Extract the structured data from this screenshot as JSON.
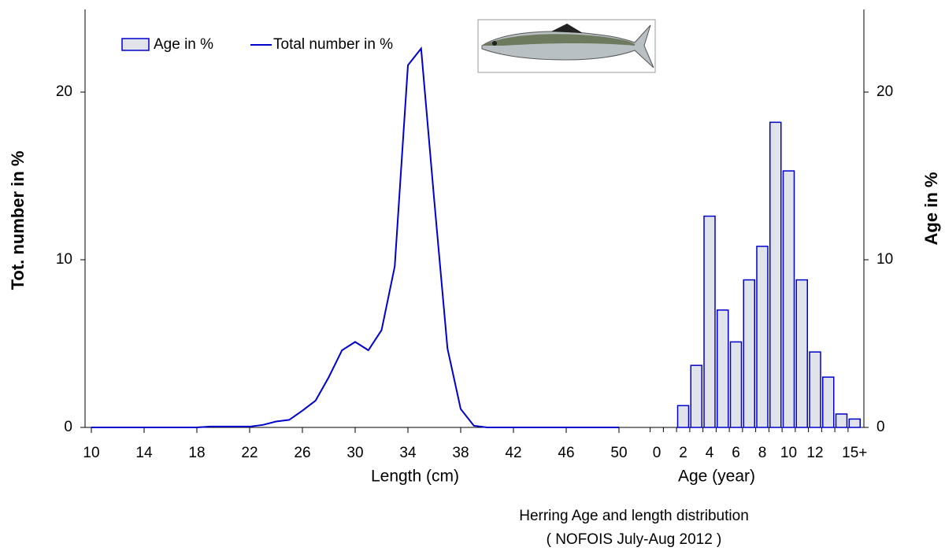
{
  "chart_data": [
    {
      "type": "line",
      "x_label": "Length (cm)",
      "y_label": "Tot.  number  in    %",
      "x": [
        10,
        11,
        12,
        13,
        14,
        15,
        16,
        17,
        18,
        19,
        20,
        21,
        22,
        23,
        24,
        25,
        26,
        27,
        28,
        29,
        30,
        31,
        32,
        33,
        34,
        35,
        36,
        37,
        38,
        39,
        40,
        41,
        42,
        43,
        44,
        45,
        46,
        47,
        48,
        49,
        50
      ],
      "series": [
        {
          "name": "Total number in %",
          "color": "#0000cc",
          "values": [
            0,
            0,
            0,
            0,
            0,
            0,
            0,
            0,
            0,
            0.05,
            0.05,
            0.05,
            0.05,
            0.15,
            0.35,
            0.45,
            1.0,
            1.6,
            3.0,
            4.6,
            5.1,
            4.6,
            5.8,
            9.6,
            21.6,
            22.6,
            13.5,
            4.7,
            1.1,
            0.1,
            0,
            0,
            0,
            0,
            0,
            0,
            0,
            0,
            0,
            0,
            0
          ]
        }
      ],
      "xlim": [
        10,
        50
      ],
      "xticks": [
        10,
        14,
        18,
        22,
        26,
        30,
        34,
        38,
        42,
        46,
        50
      ],
      "ylim": [
        0,
        25
      ],
      "yticks": [
        0,
        10,
        20
      ]
    },
    {
      "type": "bar",
      "x_label": "Age (year)",
      "y_label": "Age in  %",
      "categories": [
        "0",
        null,
        "2",
        null,
        "4",
        null,
        "6",
        null,
        "8",
        null,
        "10",
        null,
        "12",
        null,
        null,
        "15+"
      ],
      "series": [
        {
          "name": "Age in %",
          "color": "#0000cc",
          "values": [
            null,
            null,
            1.3,
            3.7,
            12.6,
            7.0,
            5.1,
            8.8,
            10.8,
            18.2,
            15.3,
            8.8,
            4.5,
            3.0,
            0.8,
            0.5
          ]
        }
      ],
      "ylim": [
        0,
        25
      ],
      "yticks": [
        0,
        10,
        20
      ]
    }
  ],
  "caption": [
    "Herring  Age and length distribution",
    "( NOFOIS July-Aug 2012 )"
  ]
}
